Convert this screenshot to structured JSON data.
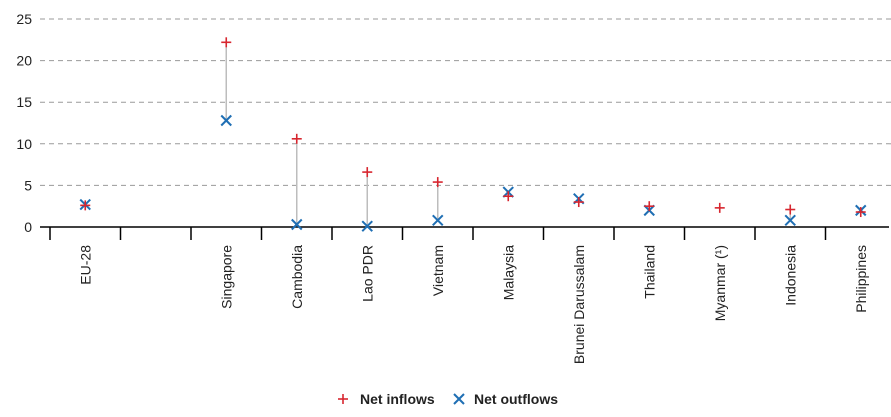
{
  "chart_data": {
    "type": "scatter",
    "title": "",
    "categories": [
      "EU-28",
      "",
      "Singapore",
      "Cambodia",
      "Lao PDR",
      "Vietnam",
      "Malaysia",
      "Brunei Darussalam",
      "Thailand",
      "Myanmar (¹)",
      "Indonesia",
      "Philippines"
    ],
    "series": [
      {
        "name": "Net inflows",
        "marker": "plus",
        "color": "#d7262f",
        "values": [
          2.6,
          null,
          22.2,
          10.6,
          6.6,
          5.4,
          3.7,
          3.0,
          2.5,
          2.3,
          2.1,
          1.8
        ]
      },
      {
        "name": "Net outflows",
        "marker": "cross",
        "color": "#1f6fb4",
        "values": [
          2.7,
          null,
          12.8,
          0.3,
          0.1,
          0.8,
          4.2,
          3.4,
          2.0,
          null,
          0.8,
          2.0
        ]
      }
    ],
    "xlabel": "",
    "ylabel": "",
    "ylim": [
      0,
      25
    ],
    "yticks": [
      0,
      5,
      10,
      15,
      20,
      25
    ],
    "grid": true,
    "connector_color": "#bdbdbd",
    "grid_color": "#9a9a9a",
    "legend_position": "bottom"
  }
}
